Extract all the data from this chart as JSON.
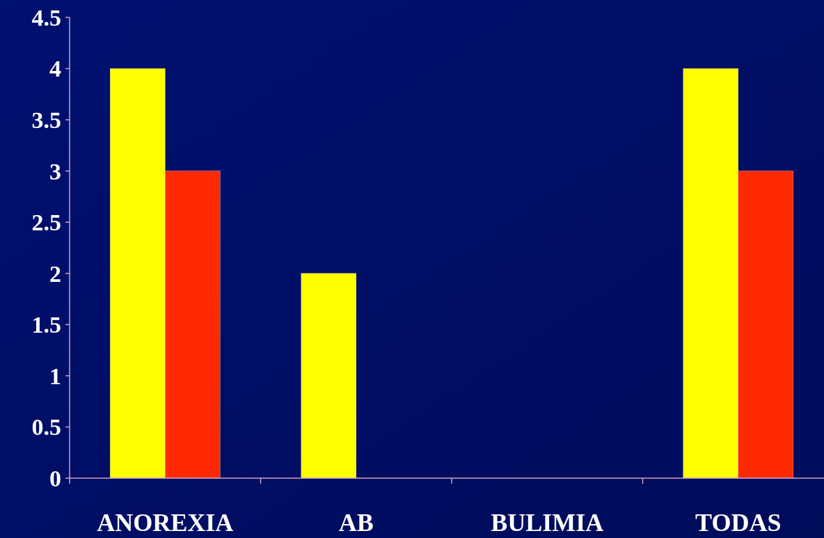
{
  "chart_data": {
    "type": "bar",
    "categories": [
      "ANOREXIA",
      "AB",
      "BULIMIA",
      "TODAS"
    ],
    "series": [
      {
        "color": "#ffff00",
        "values": [
          4,
          2,
          0,
          4
        ]
      },
      {
        "color": "#ff2a00",
        "values": [
          3,
          0,
          0,
          3
        ]
      }
    ],
    "ylim": [
      0,
      4.5
    ],
    "yticks": [
      0,
      0.5,
      1,
      1.5,
      2,
      2.5,
      3,
      3.5,
      4,
      4.5
    ],
    "grid": false
  }
}
